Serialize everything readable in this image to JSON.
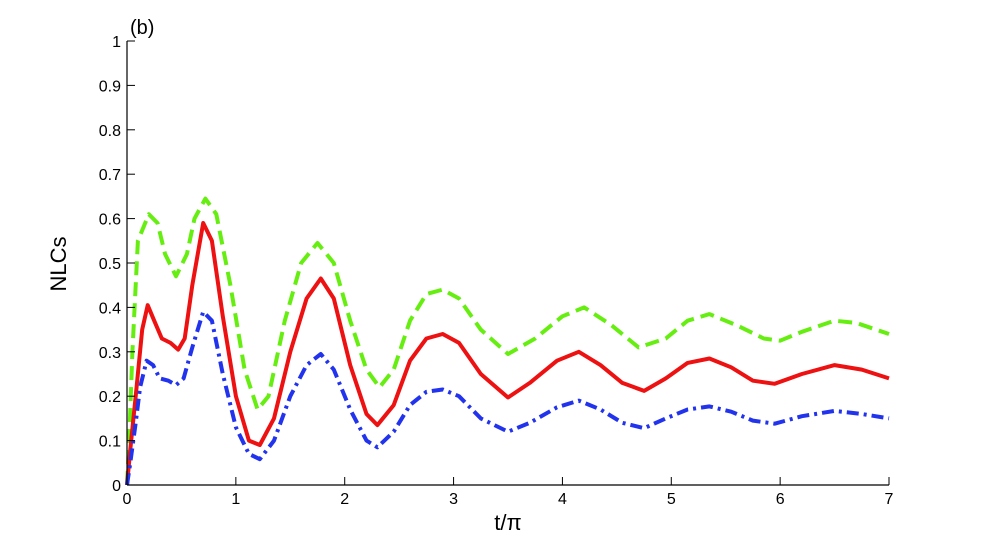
{
  "chart_data": {
    "type": "line",
    "panel_label": "(b)",
    "xlabel": "t/π",
    "ylabel": "NLCs",
    "xlim": [
      0,
      7
    ],
    "ylim": [
      0,
      1
    ],
    "x_ticks": [
      "0",
      "1",
      "2",
      "3",
      "4",
      "5",
      "6",
      "7"
    ],
    "y_ticks": [
      "0",
      "0.1",
      "0.2",
      "0.3",
      "0.4",
      "0.5",
      "0.6",
      "0.7",
      "0.8",
      "0.9",
      "1"
    ],
    "grid": false,
    "legend": "none",
    "series": [
      {
        "color": "#66ee11",
        "style": "dashed",
        "points": [
          [
            0,
            0
          ],
          [
            0.02,
            0.1
          ],
          [
            0.05,
            0.3
          ],
          [
            0.1,
            0.55
          ],
          [
            0.2,
            0.61
          ],
          [
            0.28,
            0.59
          ],
          [
            0.35,
            0.52
          ],
          [
            0.45,
            0.47
          ],
          [
            0.55,
            0.52
          ],
          [
            0.62,
            0.6
          ],
          [
            0.72,
            0.645
          ],
          [
            0.82,
            0.61
          ],
          [
            0.95,
            0.45
          ],
          [
            1.08,
            0.26
          ],
          [
            1.2,
            0.17
          ],
          [
            1.3,
            0.2
          ],
          [
            1.45,
            0.37
          ],
          [
            1.6,
            0.5
          ],
          [
            1.75,
            0.545
          ],
          [
            1.9,
            0.5
          ],
          [
            2.05,
            0.37
          ],
          [
            2.2,
            0.26
          ],
          [
            2.32,
            0.22
          ],
          [
            2.45,
            0.26
          ],
          [
            2.6,
            0.37
          ],
          [
            2.75,
            0.43
          ],
          [
            2.9,
            0.44
          ],
          [
            3.05,
            0.42
          ],
          [
            3.25,
            0.35
          ],
          [
            3.5,
            0.295
          ],
          [
            3.75,
            0.33
          ],
          [
            4.0,
            0.38
          ],
          [
            4.2,
            0.4
          ],
          [
            4.45,
            0.36
          ],
          [
            4.7,
            0.31
          ],
          [
            4.95,
            0.33
          ],
          [
            5.15,
            0.37
          ],
          [
            5.35,
            0.385
          ],
          [
            5.6,
            0.36
          ],
          [
            5.85,
            0.33
          ],
          [
            6.0,
            0.325
          ],
          [
            6.2,
            0.345
          ],
          [
            6.5,
            0.37
          ],
          [
            6.7,
            0.365
          ],
          [
            7.0,
            0.34
          ]
        ]
      },
      {
        "color": "#ee1111",
        "style": "solid",
        "points": [
          [
            0,
            0
          ],
          [
            0.03,
            0.08
          ],
          [
            0.08,
            0.2
          ],
          [
            0.14,
            0.35
          ],
          [
            0.19,
            0.405
          ],
          [
            0.25,
            0.37
          ],
          [
            0.32,
            0.33
          ],
          [
            0.4,
            0.32
          ],
          [
            0.47,
            0.305
          ],
          [
            0.53,
            0.33
          ],
          [
            0.6,
            0.45
          ],
          [
            0.7,
            0.59
          ],
          [
            0.78,
            0.55
          ],
          [
            0.88,
            0.38
          ],
          [
            1.0,
            0.2
          ],
          [
            1.12,
            0.1
          ],
          [
            1.22,
            0.09
          ],
          [
            1.35,
            0.15
          ],
          [
            1.5,
            0.3
          ],
          [
            1.65,
            0.42
          ],
          [
            1.78,
            0.465
          ],
          [
            1.9,
            0.42
          ],
          [
            2.05,
            0.27
          ],
          [
            2.2,
            0.16
          ],
          [
            2.3,
            0.135
          ],
          [
            2.45,
            0.18
          ],
          [
            2.6,
            0.28
          ],
          [
            2.75,
            0.33
          ],
          [
            2.9,
            0.34
          ],
          [
            3.05,
            0.32
          ],
          [
            3.25,
            0.25
          ],
          [
            3.5,
            0.197
          ],
          [
            3.7,
            0.23
          ],
          [
            3.95,
            0.28
          ],
          [
            4.15,
            0.3
          ],
          [
            4.35,
            0.27
          ],
          [
            4.55,
            0.23
          ],
          [
            4.75,
            0.212
          ],
          [
            4.95,
            0.24
          ],
          [
            5.15,
            0.275
          ],
          [
            5.35,
            0.285
          ],
          [
            5.55,
            0.265
          ],
          [
            5.75,
            0.235
          ],
          [
            5.95,
            0.228
          ],
          [
            6.2,
            0.25
          ],
          [
            6.5,
            0.27
          ],
          [
            6.75,
            0.26
          ],
          [
            7.0,
            0.24
          ]
        ]
      },
      {
        "color": "#2233ee",
        "style": "dash-dot",
        "points": [
          [
            0,
            0
          ],
          [
            0.03,
            0.05
          ],
          [
            0.08,
            0.14
          ],
          [
            0.12,
            0.22
          ],
          [
            0.18,
            0.28
          ],
          [
            0.24,
            0.27
          ],
          [
            0.3,
            0.24
          ],
          [
            0.38,
            0.235
          ],
          [
            0.45,
            0.225
          ],
          [
            0.52,
            0.24
          ],
          [
            0.6,
            0.31
          ],
          [
            0.7,
            0.39
          ],
          [
            0.78,
            0.37
          ],
          [
            0.88,
            0.25
          ],
          [
            1.0,
            0.13
          ],
          [
            1.12,
            0.07
          ],
          [
            1.22,
            0.058
          ],
          [
            1.35,
            0.1
          ],
          [
            1.5,
            0.2
          ],
          [
            1.65,
            0.27
          ],
          [
            1.78,
            0.295
          ],
          [
            1.9,
            0.26
          ],
          [
            2.05,
            0.17
          ],
          [
            2.2,
            0.1
          ],
          [
            2.3,
            0.085
          ],
          [
            2.45,
            0.12
          ],
          [
            2.6,
            0.18
          ],
          [
            2.75,
            0.21
          ],
          [
            2.9,
            0.215
          ],
          [
            3.05,
            0.2
          ],
          [
            3.25,
            0.15
          ],
          [
            3.5,
            0.12
          ],
          [
            3.7,
            0.14
          ],
          [
            3.95,
            0.175
          ],
          [
            4.15,
            0.19
          ],
          [
            4.35,
            0.17
          ],
          [
            4.55,
            0.14
          ],
          [
            4.75,
            0.128
          ],
          [
            4.95,
            0.15
          ],
          [
            5.15,
            0.17
          ],
          [
            5.35,
            0.177
          ],
          [
            5.55,
            0.165
          ],
          [
            5.75,
            0.145
          ],
          [
            5.95,
            0.138
          ],
          [
            6.2,
            0.155
          ],
          [
            6.5,
            0.167
          ],
          [
            6.75,
            0.16
          ],
          [
            7.0,
            0.15
          ]
        ]
      }
    ]
  }
}
